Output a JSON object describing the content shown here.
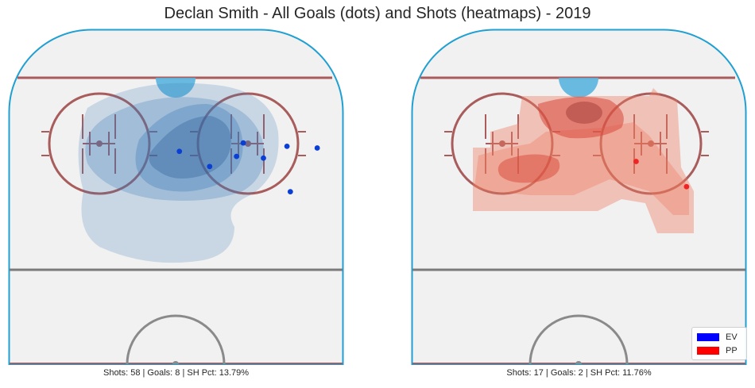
{
  "title": "Declan Smith - All Goals (dots) and Shots (heatmaps) - 2019",
  "legend": [
    {
      "label": "EV",
      "color": "#0000ff"
    },
    {
      "label": "PP",
      "color": "#ff0000"
    }
  ],
  "rink_colors": {
    "surface": "#f1f1f1",
    "boards": "#1fa0d2",
    "goal_line": "#a85c5c",
    "blue_line": "#7a7a7a",
    "crease": "#5ab4de"
  },
  "chart_data": [
    {
      "type": "heatmap",
      "title": "",
      "caption": "Shots: 58 | Goals: 8 | SH Pct: 13.79%",
      "color": "#3d7ab8",
      "goal_color": "#0a3fd6",
      "goals": [
        {
          "x": 70,
          "y": 48
        },
        {
          "x": 76,
          "y": 57
        },
        {
          "x": 83,
          "y": 50
        },
        {
          "x": 92,
          "y": 51
        },
        {
          "x": 68,
          "y": 56
        },
        {
          "x": 60,
          "y": 62
        },
        {
          "x": 51,
          "y": 53
        },
        {
          "x": 84,
          "y": 77
        }
      ]
    },
    {
      "type": "heatmap",
      "title": "",
      "caption": "Shots: 17 | Goals: 2 | SH Pct: 11.76%",
      "color": "#d9473a",
      "goal_color": "#f02424",
      "goals": [
        {
          "x": 67,
          "y": 59
        },
        {
          "x": 82,
          "y": 74
        }
      ]
    }
  ]
}
